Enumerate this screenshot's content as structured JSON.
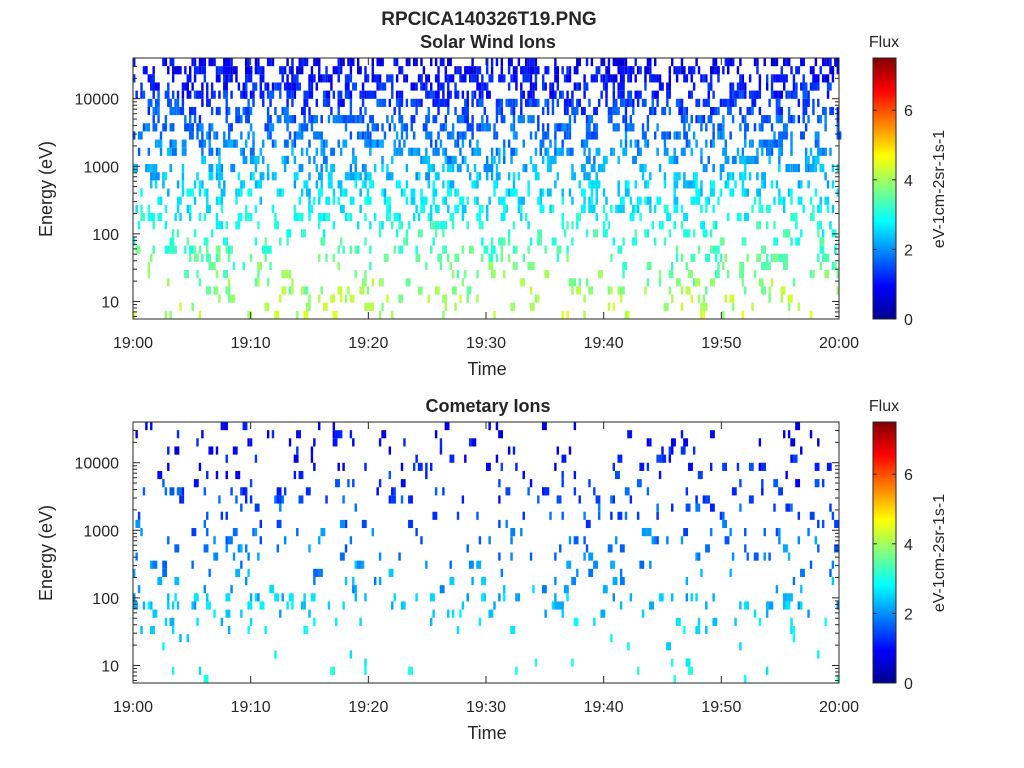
{
  "figure_title": "RPCICA140326T19.PNG",
  "colors": {
    "jet": [
      "#00008f",
      "#0000ff",
      "#0080ff",
      "#00ffff",
      "#80ff80",
      "#ffff00",
      "#ff8000",
      "#ff0000",
      "#800000"
    ]
  },
  "chart_data": [
    {
      "type": "heatmap",
      "title": "Solar Wind Ions",
      "xlabel": "Time",
      "ylabel": "Energy (eV)",
      "x_ticks": [
        "19:00",
        "19:10",
        "19:20",
        "19:30",
        "19:40",
        "19:50",
        "20:00"
      ],
      "xlim": [
        0,
        60
      ],
      "y_scale": "log",
      "ylim": [
        5.5,
        40000
      ],
      "y_ticks": [
        {
          "value": 10,
          "label": "10"
        },
        {
          "value": 100,
          "label": "100"
        },
        {
          "value": 1000,
          "label": "1000"
        },
        {
          "value": 10000,
          "label": "10000"
        }
      ],
      "colorbar": {
        "title": "Flux",
        "unit_label": "eV-1cm-2sr-1s-1",
        "range": [
          0,
          7.5
        ],
        "ticks": [
          "0",
          "2",
          "4",
          "6"
        ],
        "tick_values": [
          0,
          2,
          4,
          6
        ]
      },
      "grid": false,
      "density": 0.32,
      "max_flux": 4.6,
      "seed": 7
    },
    {
      "type": "heatmap",
      "title": "Cometary Ions",
      "xlabel": "Time",
      "ylabel": "Energy (eV)",
      "x_ticks": [
        "19:00",
        "19:10",
        "19:20",
        "19:30",
        "19:40",
        "19:50",
        "20:00"
      ],
      "xlim": [
        0,
        60
      ],
      "y_scale": "log",
      "ylim": [
        5.5,
        40000
      ],
      "y_ticks": [
        {
          "value": 10,
          "label": "10"
        },
        {
          "value": 100,
          "label": "100"
        },
        {
          "value": 1000,
          "label": "1000"
        },
        {
          "value": 10000,
          "label": "10000"
        }
      ],
      "colorbar": {
        "title": "Flux",
        "unit_label": "eV-1cm-2sr-1s-1",
        "range": [
          0,
          7.5
        ],
        "ticks": [
          "0",
          "2",
          "4",
          "6"
        ],
        "tick_values": [
          0,
          2,
          4,
          6
        ]
      },
      "grid": false,
      "density": 0.05,
      "max_flux": 3.4,
      "seed": 23
    }
  ]
}
